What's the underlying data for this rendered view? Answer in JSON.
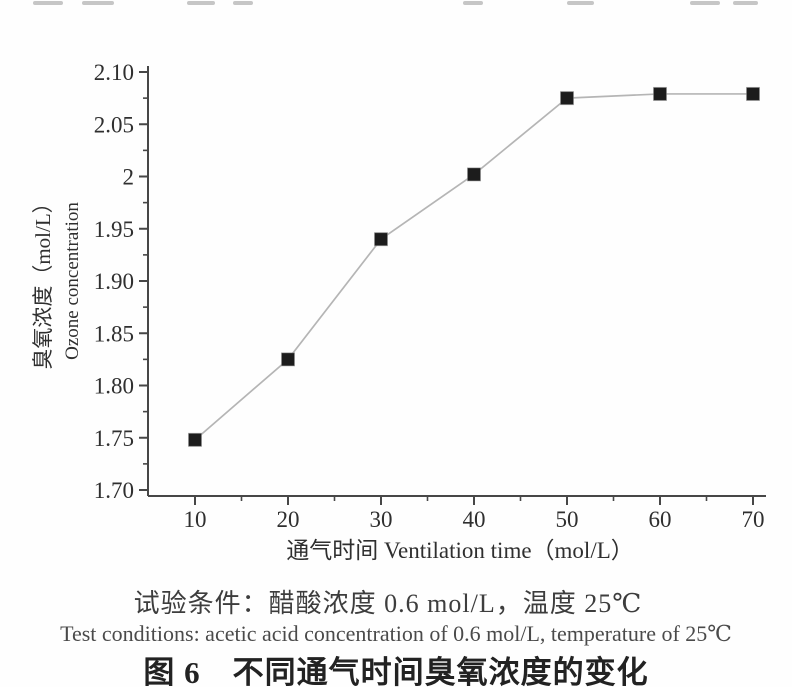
{
  "figure": {
    "captions": {
      "conditions_zh": "试验条件：醋酸浓度 0.6 mol/L，温度 25℃",
      "conditions_en": "Test conditions: acetic acid concentration of 0.6 mol/L, temperature of 25℃",
      "title": "图 6　不同通气时间臭氧浓度的变化"
    }
  },
  "chart_data": {
    "type": "line",
    "x": [
      10,
      20,
      30,
      40,
      50,
      60,
      70
    ],
    "y": [
      1.748,
      1.825,
      1.94,
      2.002,
      2.075,
      2.079,
      2.079
    ],
    "x_tick_labels": [
      "10",
      "20",
      "30",
      "40",
      "50",
      "60",
      "70"
    ],
    "x_minor_ticks": [
      15,
      25,
      35,
      45,
      55,
      65
    ],
    "y_tick_values": [
      2.1,
      2.05,
      2.0,
      1.95,
      1.9,
      1.85,
      1.8,
      1.75,
      1.7
    ],
    "y_tick_labels": [
      "2.10",
      "2.05",
      "2",
      "1.95",
      "1.90",
      "1.85",
      "1.80",
      "1.75",
      "1.70"
    ],
    "y_minor_ticks": [
      2.075,
      2.025,
      1.975,
      1.925,
      1.875,
      1.825,
      1.775,
      1.725
    ],
    "xlabel": "通气时间 Ventilation time（mol/L）",
    "ylabel_zh": "臭氧浓度（mol/L）",
    "ylabel_en": "Ozone concentration",
    "xlim": [
      5,
      71.5
    ],
    "ylim": [
      1.7,
      2.105
    ],
    "grid": false,
    "legend": null,
    "marker": "square",
    "line_color": "#b5b5b5",
    "marker_color": "#1c1c1c",
    "axis_color": "#474747",
    "label_color": "#2f2f2f"
  }
}
